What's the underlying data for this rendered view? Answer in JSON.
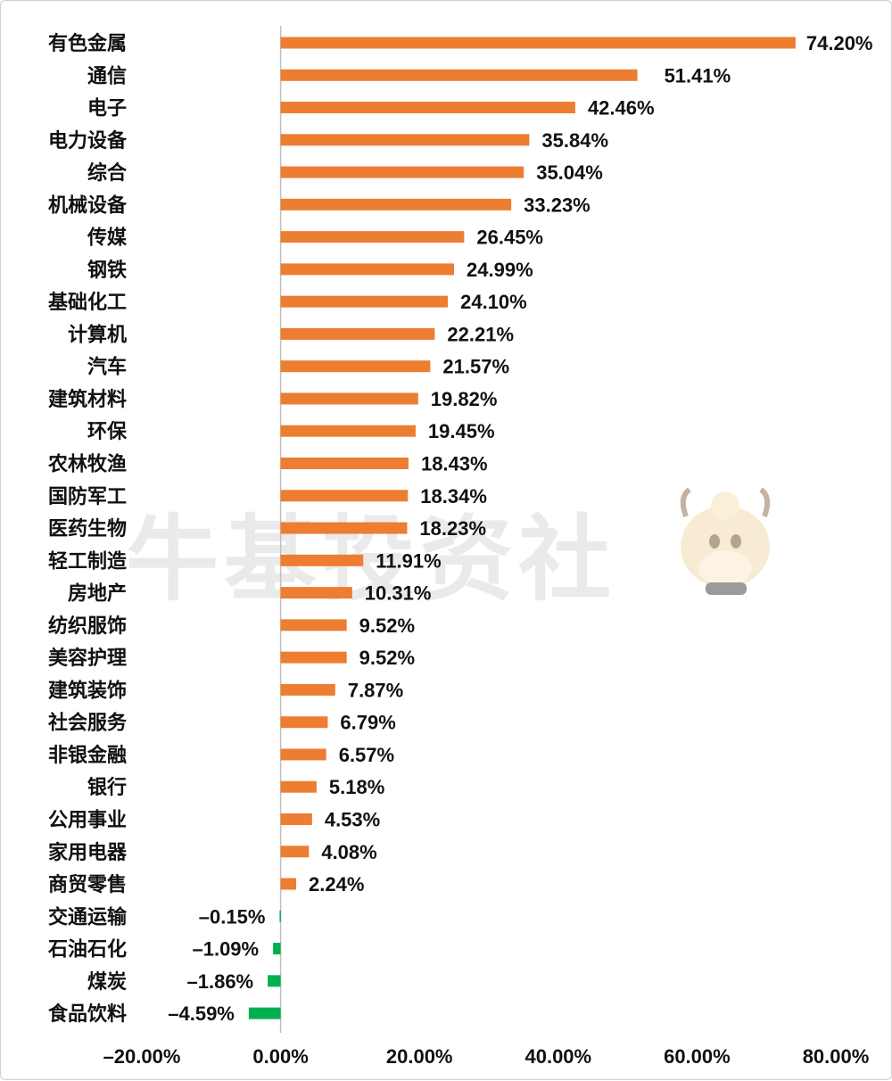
{
  "watermark": {
    "text": "牛基投资社"
  },
  "colors": {
    "positive": "#ED7D31",
    "negative": "#00B050",
    "axis": "#BFBFBF",
    "text": "#111111"
  },
  "chart_data": {
    "type": "bar",
    "orientation": "horizontal",
    "categories": [
      "有色金属",
      "通信",
      "电子",
      "电力设备",
      "综合",
      "机械设备",
      "传媒",
      "钢铁",
      "基础化工",
      "计算机",
      "汽车",
      "建筑材料",
      "环保",
      "农林牧渔",
      "国防军工",
      "医药生物",
      "轻工制造",
      "房地产",
      "纺织服饰",
      "美容护理",
      "建筑装饰",
      "社会服务",
      "非银金融",
      "银行",
      "公用事业",
      "家用电器",
      "商贸零售",
      "交通运输",
      "石油石化",
      "煤炭",
      "食品饮料"
    ],
    "values": [
      74.2,
      51.41,
      42.46,
      35.84,
      35.04,
      33.23,
      26.45,
      24.99,
      24.1,
      22.21,
      21.57,
      19.82,
      19.45,
      18.43,
      18.34,
      18.23,
      11.91,
      10.31,
      9.52,
      9.52,
      7.87,
      6.79,
      6.57,
      5.18,
      4.53,
      4.08,
      2.24,
      -0.15,
      -1.09,
      -1.86,
      -4.59
    ],
    "data_labels": [
      "74.20%",
      "51.41%",
      "42.46%",
      "35.84%",
      "35.04%",
      "33.23%",
      "26.45%",
      "24.99%",
      "24.10%",
      "22.21%",
      "21.57%",
      "19.82%",
      "19.45%",
      "18.43%",
      "18.34%",
      "18.23%",
      "11.91%",
      "10.31%",
      "9.52%",
      "9.52%",
      "7.87%",
      "6.79%",
      "6.57%",
      "5.18%",
      "4.53%",
      "4.08%",
      "2.24%",
      "–0.15%",
      "–1.09%",
      "–1.86%",
      "–4.59%"
    ],
    "xlim": [
      -20,
      80
    ],
    "x_ticks": [
      -20,
      0,
      20,
      40,
      60,
      80
    ],
    "x_tick_labels": [
      "–20.00%",
      "0.00%",
      "20.00%",
      "40.00%",
      "60.00%",
      "80.00%"
    ],
    "gridlines": false,
    "legend": "none"
  }
}
